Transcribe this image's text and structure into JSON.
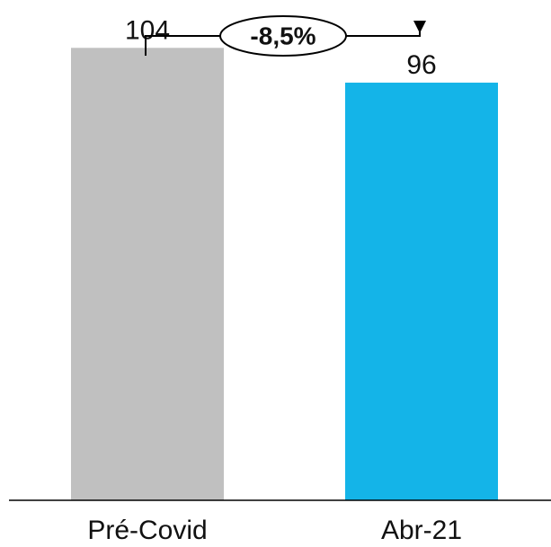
{
  "chart_data": {
    "type": "bar",
    "categories": [
      "Pré-Covid",
      "Abr-21"
    ],
    "values": [
      104,
      96
    ],
    "value_labels": [
      "104",
      "96"
    ],
    "colors": [
      "#C0C0C0",
      "#14B4E8"
    ],
    "ylim": [
      0,
      115
    ],
    "grid": false,
    "legend": "none",
    "annotation": {
      "type": "change-arrow",
      "from": "Pré-Covid",
      "to": "Abr-21",
      "label": "-8,5%"
    }
  }
}
